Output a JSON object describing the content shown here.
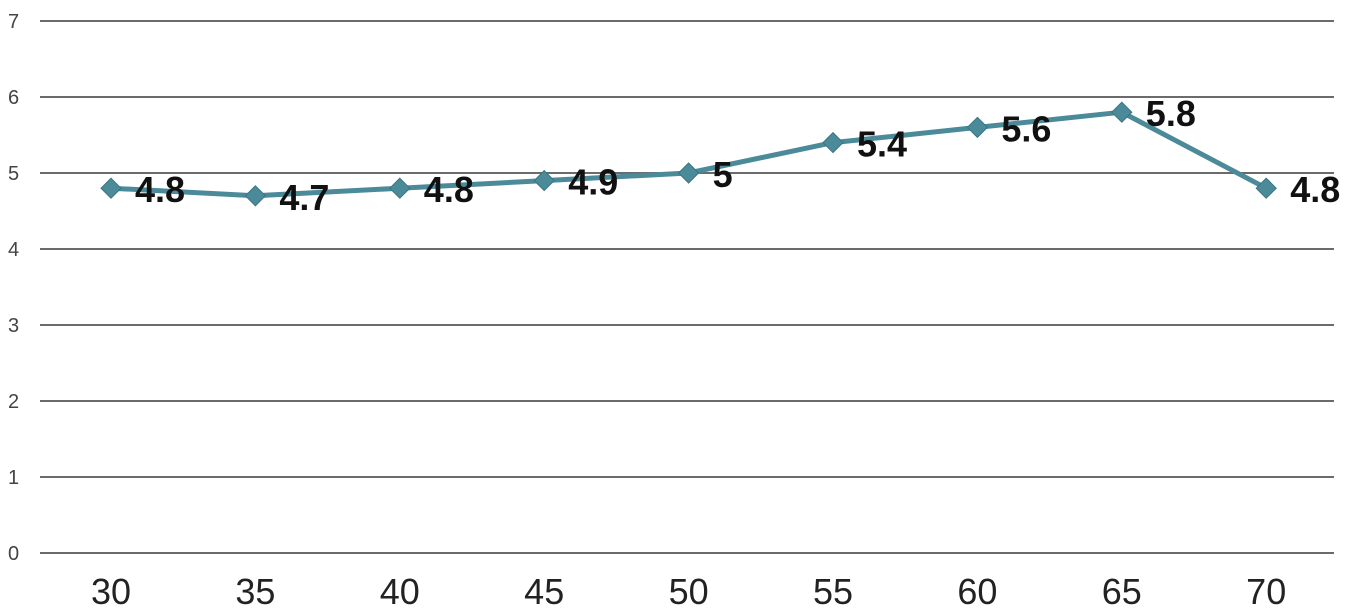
{
  "chart_data": {
    "type": "line",
    "title": "",
    "xlabel": "",
    "ylabel": "",
    "categories": [
      "30",
      "35",
      "40",
      "45",
      "50",
      "55",
      "60",
      "65",
      "70"
    ],
    "series": [
      {
        "values": [
          4.8,
          4.7,
          4.8,
          4.9,
          5,
          5.4,
          5.6,
          5.8,
          4.8
        ],
        "labels": [
          "4.8",
          "4.7",
          "4.8",
          "4.9",
          "5",
          "5.4",
          "5.6",
          "5.8",
          "4.8"
        ]
      }
    ],
    "ylim": [
      0,
      7
    ],
    "yticks": [
      "0",
      "1",
      "2",
      "3",
      "4",
      "5",
      "6",
      "7"
    ],
    "grid": true,
    "legend": "none",
    "marker": "diamond",
    "colors": {
      "series": "#4a8a99",
      "grid": "#6b6b6b"
    }
  }
}
